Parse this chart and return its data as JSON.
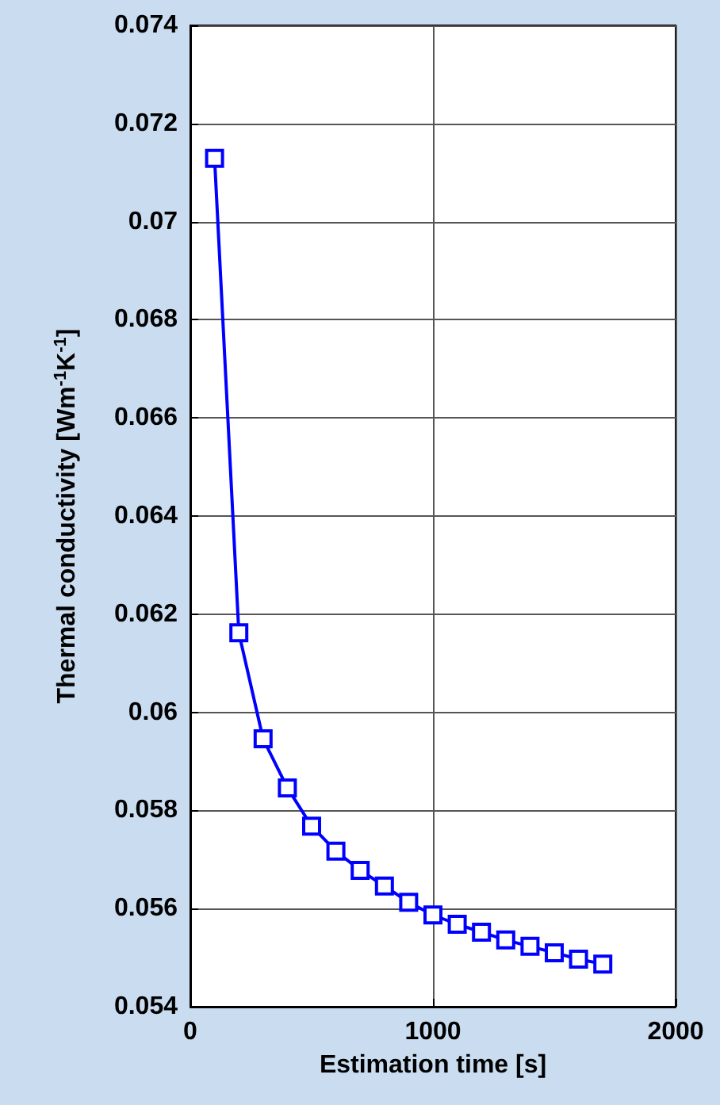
{
  "chart_data": {
    "type": "line",
    "xlabel": "Estimation time [s]",
    "ylabel": "Thermal conductivity [Wm$^{-1}$K$^{-1}$]",
    "x": [
      100,
      200,
      300,
      400,
      500,
      600,
      700,
      800,
      900,
      1000,
      1100,
      1200,
      1300,
      1400,
      1500,
      1600,
      1700
    ],
    "series": [
      {
        "color": "#0000ff",
        "values": [
          0.07129,
          0.06162,
          0.05946,
          0.05846,
          0.05768,
          0.05717,
          0.05678,
          0.05646,
          0.05613,
          0.05587,
          0.05568,
          0.05552,
          0.05536,
          0.05523,
          0.0551,
          0.05497,
          0.05487
        ]
      }
    ],
    "xlim": [
      0,
      2000
    ],
    "xticks": [
      0,
      1000,
      2000
    ],
    "ylim": [
      0.054,
      0.074
    ],
    "yticks": [
      0.054,
      0.056,
      0.058,
      0.06,
      0.062,
      0.064,
      0.066,
      0.068,
      0.07,
      0.072,
      0.074
    ],
    "grid": true,
    "marker": "square",
    "line_style": "solid"
  }
}
